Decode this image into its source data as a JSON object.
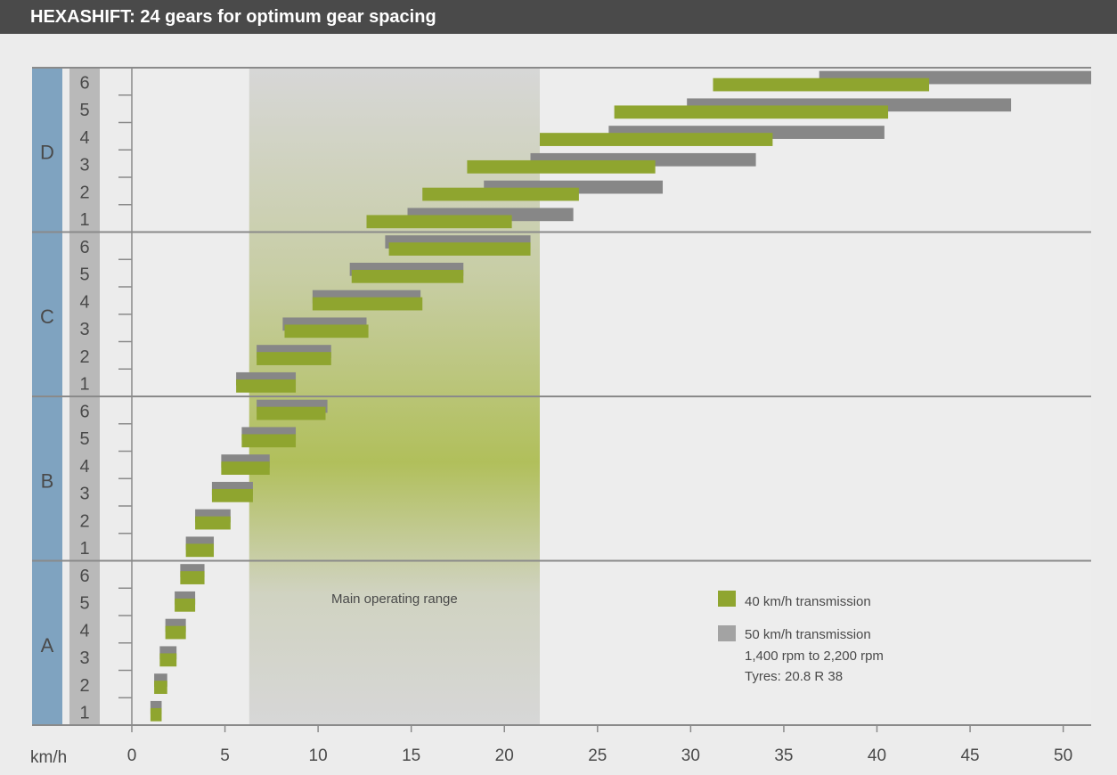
{
  "chart_data": {
    "type": "bar",
    "subtype": "floating-range",
    "title": "HEXASHIFT: 24 gears for optimum gear spacing",
    "xlabel": "km/h",
    "xlim": [
      0,
      51.5
    ],
    "xticks": [
      0,
      5,
      10,
      15,
      20,
      25,
      30,
      35,
      40,
      45,
      50
    ],
    "groups": [
      "D",
      "C",
      "B",
      "A"
    ],
    "gear_labels": [
      "6",
      "5",
      "4",
      "3",
      "2",
      "1"
    ],
    "categories": [
      "D6",
      "D5",
      "D4",
      "D3",
      "D2",
      "D1",
      "C6",
      "C5",
      "C4",
      "C3",
      "C2",
      "C1",
      "B6",
      "B5",
      "B4",
      "B3",
      "B2",
      "B1",
      "A6",
      "A5",
      "A4",
      "A3",
      "A2",
      "A1"
    ],
    "series": [
      {
        "name": "40 km/h transmission",
        "color": "#8fa52f",
        "values": [
          [
            31.2,
            42.8
          ],
          [
            25.9,
            40.6
          ],
          [
            21.9,
            34.4
          ],
          [
            18.0,
            28.1
          ],
          [
            15.6,
            24.0
          ],
          [
            12.6,
            20.4
          ],
          [
            13.8,
            21.4
          ],
          [
            11.8,
            17.8
          ],
          [
            9.7,
            15.6
          ],
          [
            8.2,
            12.7
          ],
          [
            6.7,
            10.7
          ],
          [
            5.6,
            8.8
          ],
          [
            6.7,
            10.4
          ],
          [
            5.9,
            8.8
          ],
          [
            4.8,
            7.4
          ],
          [
            4.3,
            6.5
          ],
          [
            3.4,
            5.3
          ],
          [
            2.9,
            4.4
          ],
          [
            2.6,
            3.9
          ],
          [
            2.3,
            3.4
          ],
          [
            1.8,
            2.9
          ],
          [
            1.5,
            2.4
          ],
          [
            1.2,
            1.9
          ],
          [
            1.0,
            1.6
          ]
        ]
      },
      {
        "name": "50 km/h transmission",
        "color": "#878787",
        "values": [
          [
            36.9,
            51.5
          ],
          [
            29.8,
            47.2
          ],
          [
            25.6,
            40.4
          ],
          [
            21.4,
            33.5
          ],
          [
            18.9,
            28.5
          ],
          [
            14.8,
            23.7
          ],
          [
            13.6,
            21.4
          ],
          [
            11.7,
            17.8
          ],
          [
            9.7,
            15.5
          ],
          [
            8.1,
            12.6
          ],
          [
            6.7,
            10.7
          ],
          [
            5.6,
            8.8
          ],
          [
            6.7,
            10.5
          ],
          [
            5.9,
            8.8
          ],
          [
            4.8,
            7.4
          ],
          [
            4.3,
            6.5
          ],
          [
            3.4,
            5.3
          ],
          [
            2.9,
            4.4
          ],
          [
            2.6,
            3.9
          ],
          [
            2.3,
            3.4
          ],
          [
            1.8,
            2.9
          ],
          [
            1.5,
            2.4
          ],
          [
            1.2,
            1.9
          ],
          [
            1.0,
            1.6
          ]
        ]
      }
    ],
    "highlight": {
      "label": "Main operating range",
      "x0": 6.3,
      "x1": 21.9
    },
    "legend": {
      "placement": "bottom-right",
      "entries": [
        "40 km/h transmission",
        "50 km/h transmission"
      ],
      "notes": [
        "1,400 rpm to 2,200 rpm",
        "Tyres: 20.8 R 38"
      ]
    },
    "colors": {
      "group_band": "#7fa3c0",
      "gear_band": "#b9b9b9",
      "grid": "#8a8a8a",
      "shade": "#d7d7d7",
      "shade_green": "#aabb45"
    }
  }
}
